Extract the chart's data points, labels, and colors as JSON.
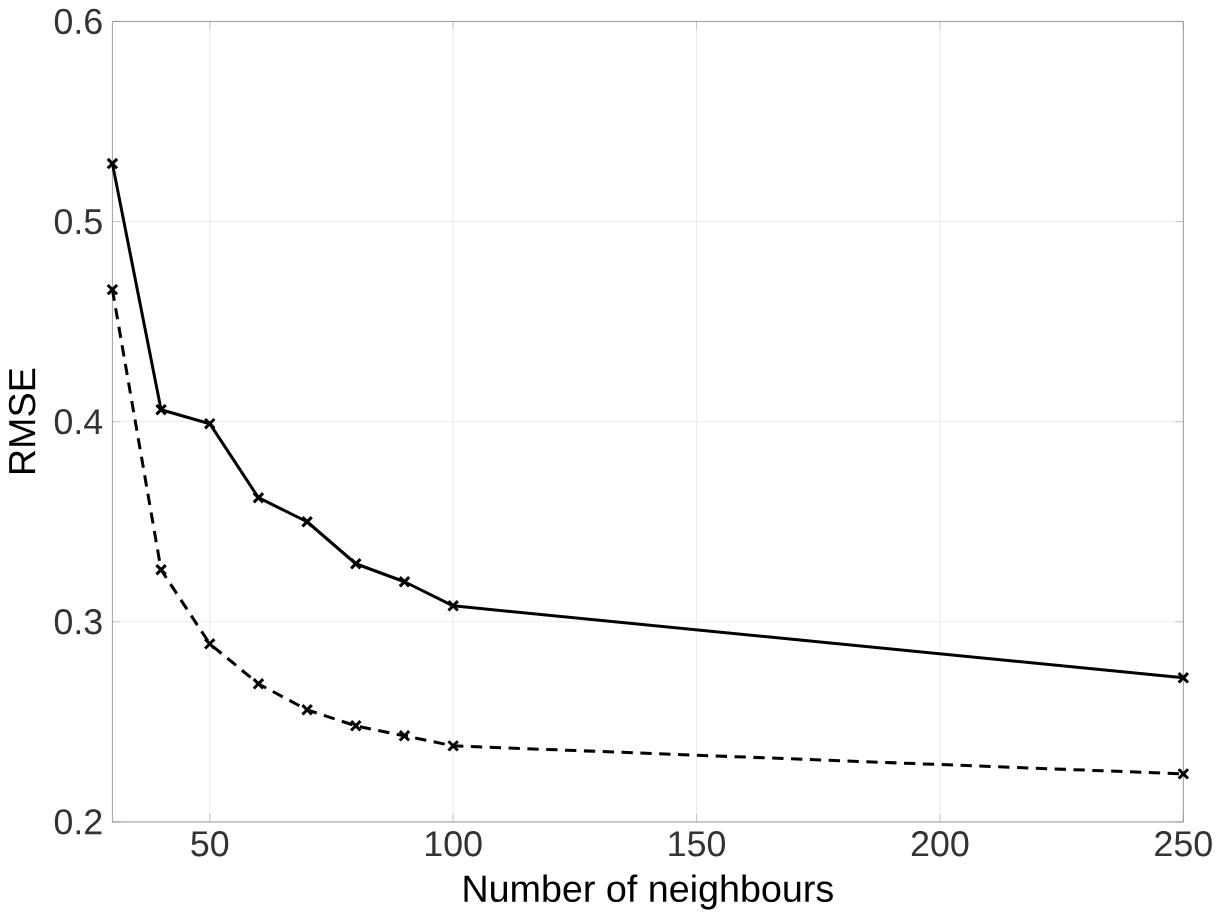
{
  "chart_data": {
    "type": "line",
    "xlabel": "Number of neighbours",
    "ylabel": "RMSE",
    "x": [
      30,
      40,
      50,
      60,
      70,
      80,
      90,
      100,
      250
    ],
    "series": [
      {
        "color": "#000000",
        "line_style": "solid",
        "values": [
          0.529,
          0.406,
          0.399,
          0.362,
          0.35,
          0.329,
          0.32,
          0.308,
          0.272
        ]
      },
      {
        "color": "#000000",
        "line_style": "dashed",
        "values": [
          0.466,
          0.326,
          0.289,
          0.269,
          0.256,
          0.248,
          0.243,
          0.238,
          0.224
        ]
      }
    ],
    "xlim": [
      30,
      250
    ],
    "xticks": [
      50,
      100,
      150,
      200,
      250
    ],
    "ylim": [
      0.2,
      0.6
    ],
    "yticks": [
      0.2,
      0.3,
      0.4,
      0.5,
      0.6
    ],
    "grid": true,
    "marker": "cross"
  }
}
